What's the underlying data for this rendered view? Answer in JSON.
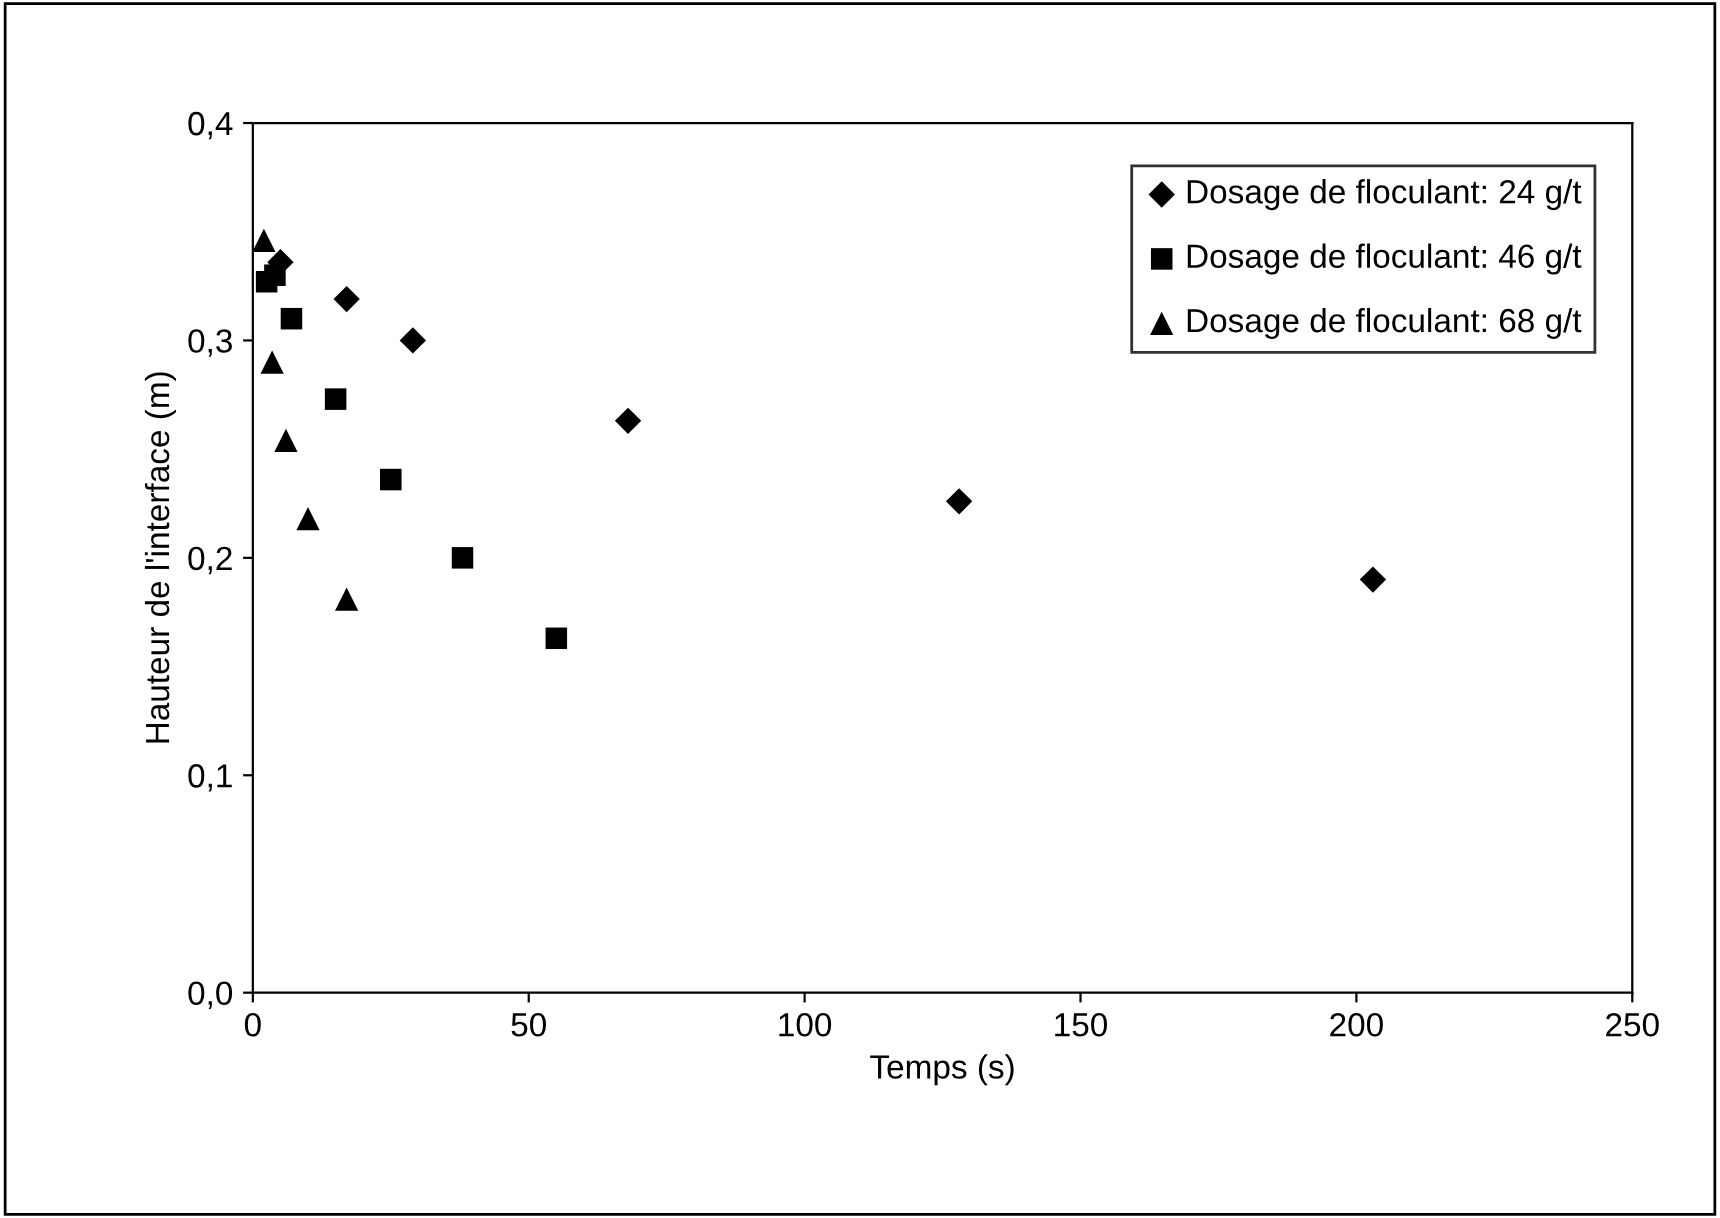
{
  "chart_data": {
    "type": "scatter",
    "xlabel": "Temps (s)",
    "ylabel": "Hauteur de l'interface (m)",
    "xlim": [
      0,
      250
    ],
    "ylim": [
      0,
      0.4
    ],
    "xticks": [
      0,
      50,
      100,
      150,
      200,
      250
    ],
    "yticks": [
      {
        "value": 0,
        "label": "0,0"
      },
      {
        "value": 0.1,
        "label": "0,1"
      },
      {
        "value": 0.2,
        "label": "0,2"
      },
      {
        "value": 0.3,
        "label": "0,3"
      },
      {
        "value": 0.4,
        "label": "0,4"
      }
    ],
    "grid": false,
    "legend": "top right",
    "series": [
      {
        "name": "Dosage de floculant: 24 g/t",
        "color": "#000000",
        "marker": "diamond",
        "x": [
          5,
          17,
          29,
          68,
          128,
          203
        ],
        "values": [
          0.336,
          0.319,
          0.3,
          0.263,
          0.226,
          0.19
        ]
      },
      {
        "name": "Dosage de floculant: 46 g/t",
        "color": "#000000",
        "marker": "square",
        "x": [
          2.5,
          4,
          7,
          15,
          25,
          38,
          55
        ],
        "values": [
          0.327,
          0.33,
          0.31,
          0.273,
          0.236,
          0.2,
          0.163
        ]
      },
      {
        "name": "Dosage de floculant: 68 g/t",
        "color": "#000000",
        "marker": "triangle",
        "x": [
          2,
          3.5,
          6,
          10,
          17
        ],
        "values": [
          0.346,
          0.29,
          0.254,
          0.218,
          0.181
        ]
      }
    ]
  }
}
